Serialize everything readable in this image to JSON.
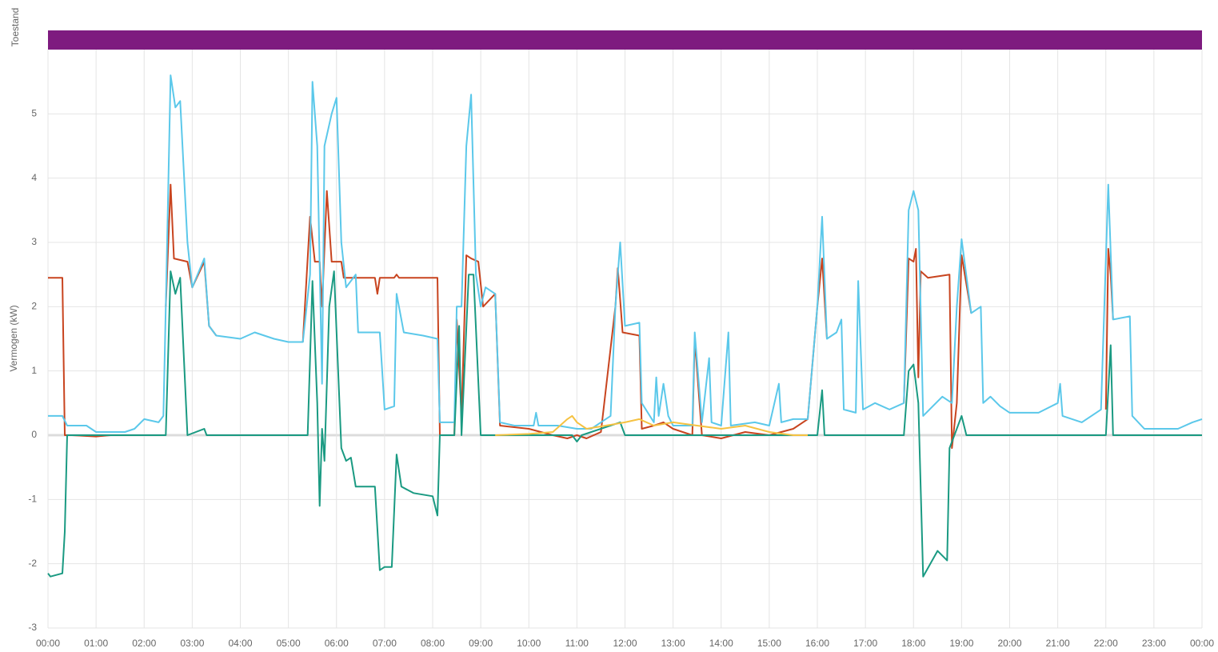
{
  "chart_data": {
    "type": "line",
    "status_bar": {
      "label": "Toestand",
      "color": "#7e1b7f"
    },
    "ylabel": "Vermogen (kW)",
    "xlim": [
      0,
      24
    ],
    "xticks": [
      {
        "value": 0,
        "label": "00:00"
      },
      {
        "value": 1,
        "label": "01:00"
      },
      {
        "value": 2,
        "label": "02:00"
      },
      {
        "value": 3,
        "label": "03:00"
      },
      {
        "value": 4,
        "label": "04:00"
      },
      {
        "value": 5,
        "label": "05:00"
      },
      {
        "value": 6,
        "label": "06:00"
      },
      {
        "value": 7,
        "label": "07:00"
      },
      {
        "value": 8,
        "label": "08:00"
      },
      {
        "value": 9,
        "label": "09:00"
      },
      {
        "value": 10,
        "label": "10:00"
      },
      {
        "value": 11,
        "label": "11:00"
      },
      {
        "value": 12,
        "label": "12:00"
      },
      {
        "value": 13,
        "label": "13:00"
      },
      {
        "value": 14,
        "label": "14:00"
      },
      {
        "value": 15,
        "label": "15:00"
      },
      {
        "value": 16,
        "label": "16:00"
      },
      {
        "value": 17,
        "label": "17:00"
      },
      {
        "value": 18,
        "label": "18:00"
      },
      {
        "value": 19,
        "label": "19:00"
      },
      {
        "value": 20,
        "label": "20:00"
      },
      {
        "value": 21,
        "label": "21:00"
      },
      {
        "value": 22,
        "label": "22:00"
      },
      {
        "value": 23,
        "label": "23:00"
      },
      {
        "value": 24,
        "label": "00:00"
      }
    ],
    "ylim": [
      -3,
      6
    ],
    "yticks": [
      -3,
      -2,
      -1,
      0,
      1,
      2,
      3,
      4,
      5
    ],
    "grid": true,
    "series": [
      {
        "color": "#c8441f",
        "x": [
          0,
          0.3,
          0.35,
          0.5,
          1.0,
          1.3,
          1.65,
          2.0,
          2.45,
          2.55,
          2.62,
          2.9,
          3.0,
          3.25,
          3.35,
          3.5,
          4.4,
          5.3,
          5.45,
          5.55,
          5.65,
          5.7,
          5.8,
          5.9,
          6.1,
          6.15,
          6.8,
          6.85,
          6.9,
          7.2,
          7.25,
          7.3,
          8.1,
          8.15,
          8.45,
          8.5,
          8.6,
          8.7,
          8.8,
          8.95,
          9.05,
          9.3,
          9.4,
          10.0,
          10.5,
          10.8,
          11.0,
          11.2,
          11.5,
          11.8,
          11.85,
          11.95,
          12.3,
          12.35,
          12.6,
          12.8,
          13.0,
          13.4,
          13.45,
          13.6,
          14.0,
          14.5,
          15.0,
          15.5,
          15.8,
          16.0,
          16.1,
          16.2,
          17.0,
          17.8,
          17.9,
          18.0,
          18.05,
          18.1,
          18.15,
          18.3,
          18.75,
          18.8,
          18.9,
          19.0,
          19.2,
          21.0,
          22.0,
          22.05,
          22.1,
          22.15
        ],
        "values": [
          2.45,
          2.45,
          0,
          0,
          -0.02,
          0,
          0,
          null,
          2.0,
          3.9,
          2.75,
          2.7,
          2.3,
          2.7,
          1.7,
          1.55,
          null,
          1.45,
          3.4,
          2.7,
          2.7,
          2.0,
          3.8,
          2.7,
          2.7,
          2.45,
          2.45,
          2.2,
          2.45,
          2.45,
          2.5,
          2.45,
          2.45,
          0,
          0,
          1.8,
          0.3,
          2.8,
          2.75,
          2.7,
          2.0,
          2.2,
          0.15,
          0.1,
          0,
          -0.05,
          0,
          -0.05,
          0.05,
          2.0,
          2.6,
          1.6,
          1.55,
          0.1,
          0.15,
          0.2,
          0.1,
          0,
          1.5,
          0,
          -0.05,
          0.05,
          0,
          0.1,
          0.25,
          2.0,
          2.75,
          1.5,
          null,
          0.5,
          2.75,
          2.7,
          2.9,
          0.9,
          2.55,
          2.45,
          2.5,
          -0.2,
          0.5,
          2.8,
          1.9,
          null,
          0.4,
          2.9,
          2.5,
          1.8
        ]
      },
      {
        "color": "#5bc8ea",
        "x": [
          0,
          0.3,
          0.4,
          0.8,
          1.0,
          1.6,
          1.8,
          2.0,
          2.3,
          2.4,
          2.45,
          2.55,
          2.65,
          2.75,
          2.9,
          3.0,
          3.25,
          3.35,
          3.5,
          4.0,
          4.3,
          4.7,
          5.0,
          5.3,
          5.45,
          5.5,
          5.6,
          5.7,
          5.75,
          5.9,
          6.0,
          6.1,
          6.2,
          6.4,
          6.45,
          6.9,
          7.0,
          7.2,
          7.25,
          7.4,
          7.8,
          8.1,
          8.15,
          8.45,
          8.5,
          8.6,
          8.7,
          8.8,
          8.9,
          9.0,
          9.1,
          9.3,
          9.4,
          9.7,
          10.1,
          10.15,
          10.2,
          10.6,
          11.0,
          11.3,
          11.5,
          11.7,
          11.8,
          11.9,
          12.0,
          12.3,
          12.35,
          12.6,
          12.65,
          12.7,
          12.8,
          12.9,
          13.0,
          13.4,
          13.45,
          13.6,
          13.75,
          13.8,
          14.0,
          14.15,
          14.2,
          14.7,
          15.0,
          15.2,
          15.25,
          15.5,
          15.8,
          16.0,
          16.1,
          16.2,
          16.4,
          16.5,
          16.55,
          16.8,
          16.85,
          16.95,
          17.2,
          17.5,
          17.8,
          17.9,
          18.0,
          18.1,
          18.2,
          18.6,
          18.8,
          18.9,
          19.0,
          19.2,
          19.4,
          19.45,
          19.6,
          19.8,
          20.0,
          20.6,
          21.0,
          21.05,
          21.1,
          21.5,
          21.9,
          22.05,
          22.15,
          22.5,
          22.55,
          22.8,
          23.5,
          23.8,
          24.0
        ],
        "values": [
          0.3,
          0.3,
          0.15,
          0.15,
          0.05,
          0.05,
          0.1,
          0.25,
          0.2,
          0.3,
          2.0,
          5.6,
          5.1,
          5.2,
          3.0,
          2.3,
          2.75,
          1.7,
          1.55,
          1.5,
          1.6,
          1.5,
          1.45,
          1.45,
          2.5,
          5.5,
          4.5,
          0.8,
          4.5,
          5.0,
          5.25,
          3.0,
          2.3,
          2.5,
          1.6,
          1.6,
          0.4,
          0.45,
          2.2,
          1.6,
          1.55,
          1.5,
          0.2,
          0.2,
          2.0,
          2.0,
          4.5,
          5.3,
          2.5,
          2.0,
          2.3,
          2.2,
          0.2,
          0.15,
          0.15,
          0.35,
          0.15,
          0.15,
          0.1,
          0.1,
          0.2,
          0.3,
          2.0,
          3.0,
          1.7,
          1.75,
          0.5,
          0.2,
          0.9,
          0.3,
          0.8,
          0.3,
          0.15,
          0.15,
          1.6,
          0.2,
          1.2,
          0.2,
          0.15,
          1.6,
          0.15,
          0.2,
          0.15,
          0.8,
          0.2,
          0.25,
          0.25,
          2.0,
          3.4,
          1.5,
          1.6,
          1.8,
          0.4,
          0.35,
          2.4,
          0.4,
          0.5,
          0.4,
          0.5,
          3.5,
          3.8,
          3.5,
          0.3,
          0.6,
          0.5,
          2.0,
          3.05,
          1.9,
          2.0,
          0.5,
          0.6,
          0.45,
          0.35,
          0.35,
          0.5,
          0.8,
          0.3,
          0.2,
          0.4,
          3.9,
          1.8,
          1.85,
          0.3,
          0.1,
          0.1,
          0.2,
          0.25
        ]
      },
      {
        "color": "#1a9a82",
        "x": [
          0,
          0.05,
          0.3,
          0.35,
          0.4,
          2.45,
          2.55,
          2.65,
          2.75,
          2.9,
          3.25,
          3.3,
          5.4,
          5.5,
          5.6,
          5.65,
          5.7,
          5.75,
          5.85,
          5.95,
          6.1,
          6.2,
          6.3,
          6.4,
          6.8,
          6.9,
          7.0,
          7.15,
          7.25,
          7.35,
          7.6,
          8.0,
          8.1,
          8.15,
          8.45,
          8.55,
          8.6,
          8.75,
          8.85,
          9.0,
          10.9,
          11.0,
          11.1,
          11.9,
          12.0,
          16.0,
          16.1,
          16.15,
          17.8,
          17.9,
          18.0,
          18.1,
          18.2,
          18.5,
          18.7,
          18.75,
          18.85,
          19.0,
          19.1,
          22.0,
          22.1,
          22.15,
          24.0
        ],
        "values": [
          -2.15,
          -2.2,
          -2.15,
          -1.5,
          0,
          0,
          2.55,
          2.2,
          2.45,
          0,
          0.1,
          0,
          0,
          2.4,
          0.5,
          -1.1,
          0.1,
          -0.4,
          2.0,
          2.55,
          -0.2,
          -0.4,
          -0.35,
          -0.8,
          -0.8,
          -2.1,
          -2.05,
          -2.05,
          -0.3,
          -0.8,
          -0.9,
          -0.95,
          -1.25,
          0,
          0,
          1.7,
          0,
          2.5,
          2.5,
          0,
          0,
          -0.1,
          0,
          0.2,
          0,
          0,
          0.7,
          0,
          0,
          1.0,
          1.1,
          0.5,
          -2.2,
          -1.8,
          -1.95,
          -0.2,
          0,
          0.3,
          0,
          0,
          1.4,
          0,
          0
        ]
      },
      {
        "color": "#f5c242",
        "x": [
          9.3,
          10.0,
          10.5,
          10.8,
          10.9,
          11.0,
          11.2,
          11.6,
          12.0,
          12.3,
          12.6,
          13.0,
          13.5,
          14.0,
          14.5,
          15.0,
          15.5,
          15.8
        ],
        "values": [
          0,
          0.02,
          0.05,
          0.25,
          0.3,
          0.2,
          0.1,
          0.15,
          0.2,
          0.25,
          0.15,
          0.2,
          0.15,
          0.1,
          0.15,
          0.05,
          0,
          0
        ]
      }
    ]
  }
}
